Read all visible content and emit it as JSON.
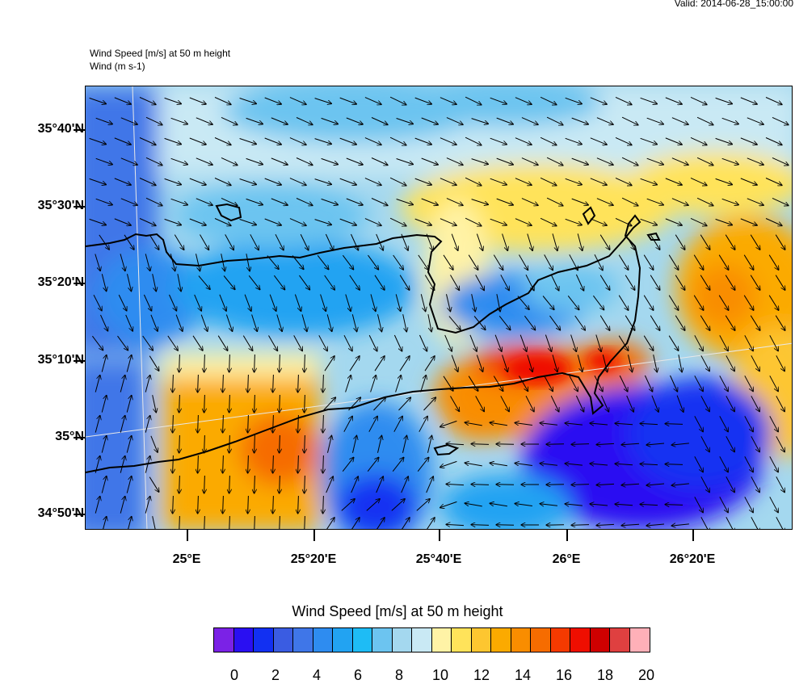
{
  "valid": "Valid: 2014-06-28_15:00:00",
  "subtitle1": "Wind Speed [m/s] at 50 m height",
  "subtitle2": "Wind   (m s-1)",
  "lat_labels": [
    "35°40'N",
    "35°30'N",
    "35°20'N",
    "35°10'N",
    "35°N",
    "34°50'N"
  ],
  "lon_labels": [
    "25°E",
    "25°20'E",
    "25°40'E",
    "26°E",
    "26°20'E"
  ],
  "colorbar_title": "Wind Speed [m/s] at 50 m height",
  "colorbar_labels": [
    "0",
    "2",
    "4",
    "6",
    "8",
    "10",
    "12",
    "14",
    "16",
    "18",
    "20"
  ],
  "colorbar_colors": [
    "#7b22e6",
    "#2a0ff2",
    "#1230f2",
    "#3a5ce2",
    "#3f76e8",
    "#2e8cf0",
    "#22a3f2",
    "#1ebcf5",
    "#6cc4f0",
    "#a4d8ef",
    "#c9e9f4",
    "#fff3a6",
    "#ffe35a",
    "#fdc630",
    "#fbaa00",
    "#f98d00",
    "#f66c00",
    "#f53a00",
    "#ef0e00",
    "#cf0000",
    "#df4040",
    "#ffb0b8"
  ],
  "map": {
    "coastline_color": "#000000",
    "arrow_color": "#000000"
  }
}
